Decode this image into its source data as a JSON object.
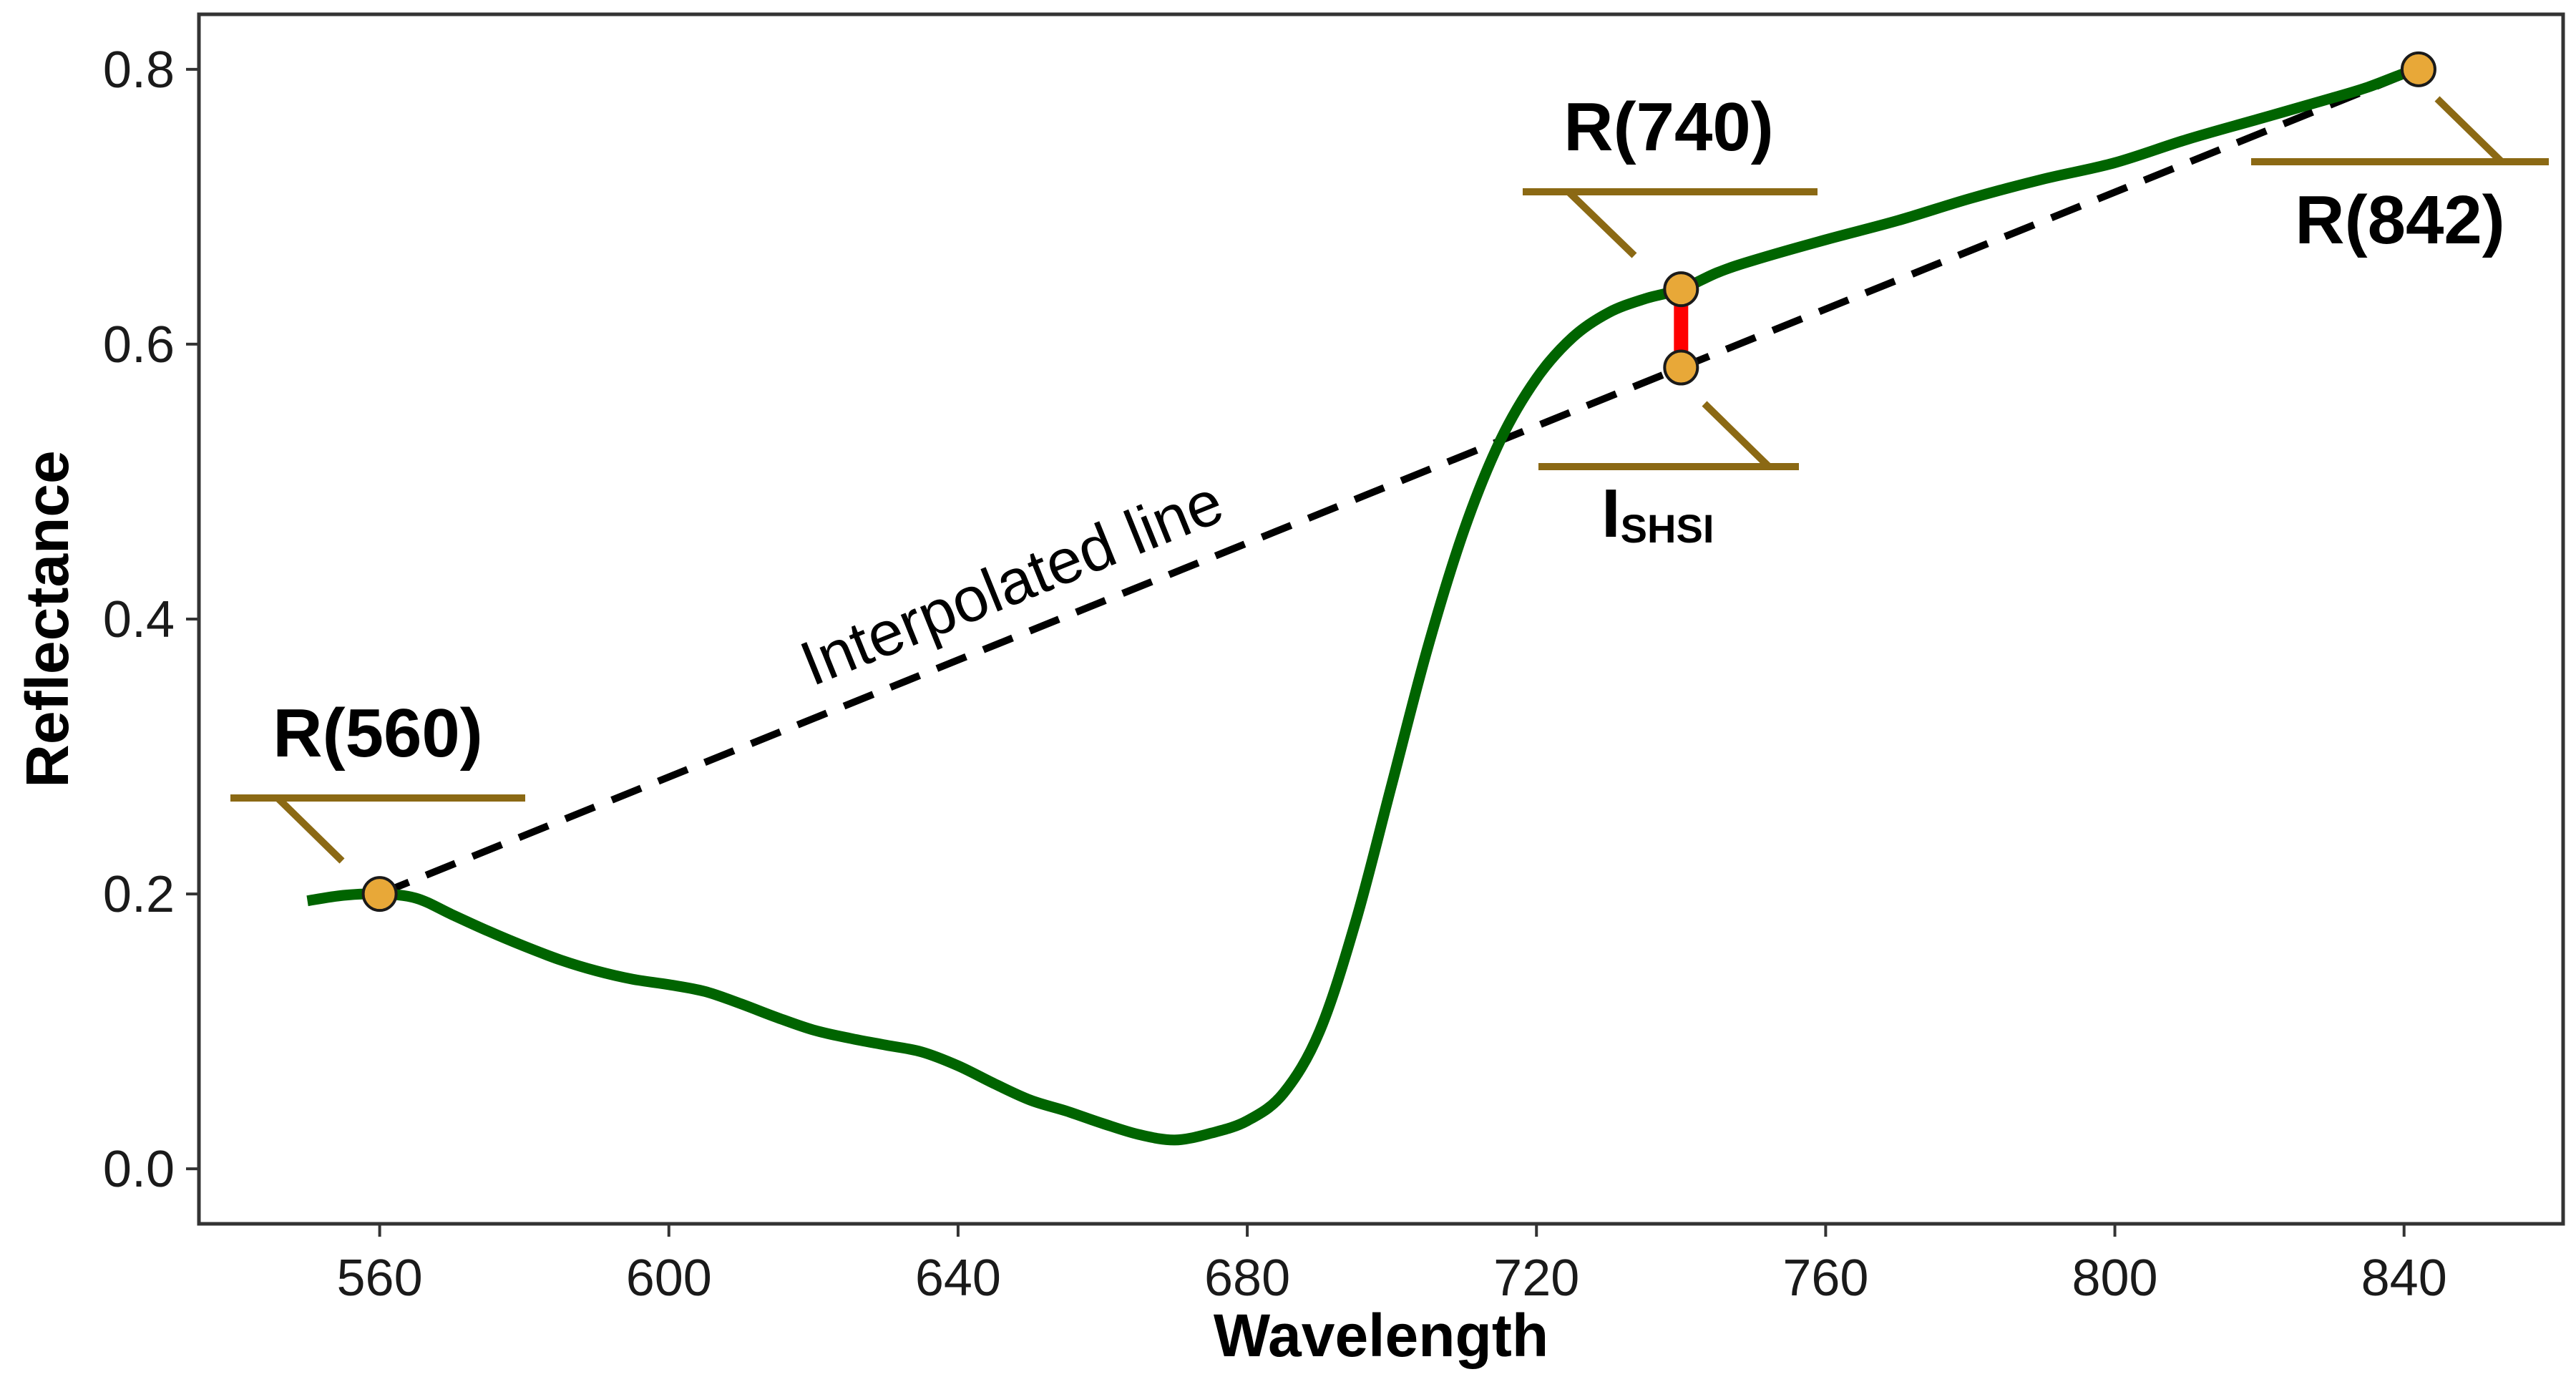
{
  "chart_data": {
    "type": "line",
    "xlabel": "Wavelength",
    "ylabel": "Reflectance",
    "xlim": [
      535,
      862
    ],
    "ylim": [
      -0.04,
      0.84
    ],
    "x_ticks": [
      560,
      600,
      640,
      680,
      720,
      760,
      800,
      840
    ],
    "y_ticks": [
      0.0,
      0.2,
      0.4,
      0.6,
      0.8
    ],
    "y_tick_labels": [
      "0.0",
      "0.2",
      "0.4",
      "0.6",
      "0.8"
    ],
    "grid": false,
    "series": [
      {
        "color": "#006400",
        "points": [
          [
            550,
            0.195
          ],
          [
            555,
            0.199
          ],
          [
            560,
            0.2
          ],
          [
            565,
            0.197
          ],
          [
            570,
            0.185
          ],
          [
            575,
            0.173
          ],
          [
            580,
            0.162
          ],
          [
            585,
            0.152
          ],
          [
            590,
            0.144
          ],
          [
            595,
            0.138
          ],
          [
            600,
            0.134
          ],
          [
            605,
            0.129
          ],
          [
            610,
            0.12
          ],
          [
            615,
            0.11
          ],
          [
            620,
            0.101
          ],
          [
            625,
            0.095
          ],
          [
            630,
            0.09
          ],
          [
            635,
            0.085
          ],
          [
            640,
            0.075
          ],
          [
            645,
            0.062
          ],
          [
            650,
            0.05
          ],
          [
            655,
            0.042
          ],
          [
            660,
            0.033
          ],
          [
            665,
            0.025
          ],
          [
            670,
            0.021
          ],
          [
            675,
            0.026
          ],
          [
            680,
            0.035
          ],
          [
            685,
            0.055
          ],
          [
            690,
            0.1
          ],
          [
            695,
            0.18
          ],
          [
            700,
            0.28
          ],
          [
            705,
            0.38
          ],
          [
            710,
            0.465
          ],
          [
            715,
            0.53
          ],
          [
            720,
            0.575
          ],
          [
            725,
            0.605
          ],
          [
            730,
            0.623
          ],
          [
            735,
            0.633
          ],
          [
            740,
            0.64
          ],
          [
            745,
            0.652
          ],
          [
            750,
            0.661
          ],
          [
            760,
            0.676
          ],
          [
            770,
            0.69
          ],
          [
            780,
            0.706
          ],
          [
            790,
            0.72
          ],
          [
            800,
            0.732
          ],
          [
            810,
            0.749
          ],
          [
            820,
            0.764
          ],
          [
            830,
            0.779
          ],
          [
            835,
            0.787
          ],
          [
            840,
            0.797
          ],
          [
            842,
            0.8
          ]
        ]
      }
    ],
    "interpolated_line": {
      "label": "Interpolated line",
      "from": [
        560,
        0.2
      ],
      "to": [
        842,
        0.8
      ],
      "color": "#000000"
    },
    "markers": [
      {
        "x": 560,
        "y": 0.2,
        "label": "R(560)"
      },
      {
        "x": 740,
        "y": 0.64,
        "label": "R(740)"
      },
      {
        "x": 842,
        "y": 0.8,
        "label": "R(842)"
      },
      {
        "x": 740,
        "y": 0.583,
        "label": "I",
        "label_sub": "SHSI"
      }
    ],
    "difference_segment": {
      "x": 740,
      "y_from": 0.583,
      "y_to": 0.64,
      "color": "#ff0000"
    },
    "marker_fill": "#e8a838",
    "leader_color": "#8b6914"
  }
}
